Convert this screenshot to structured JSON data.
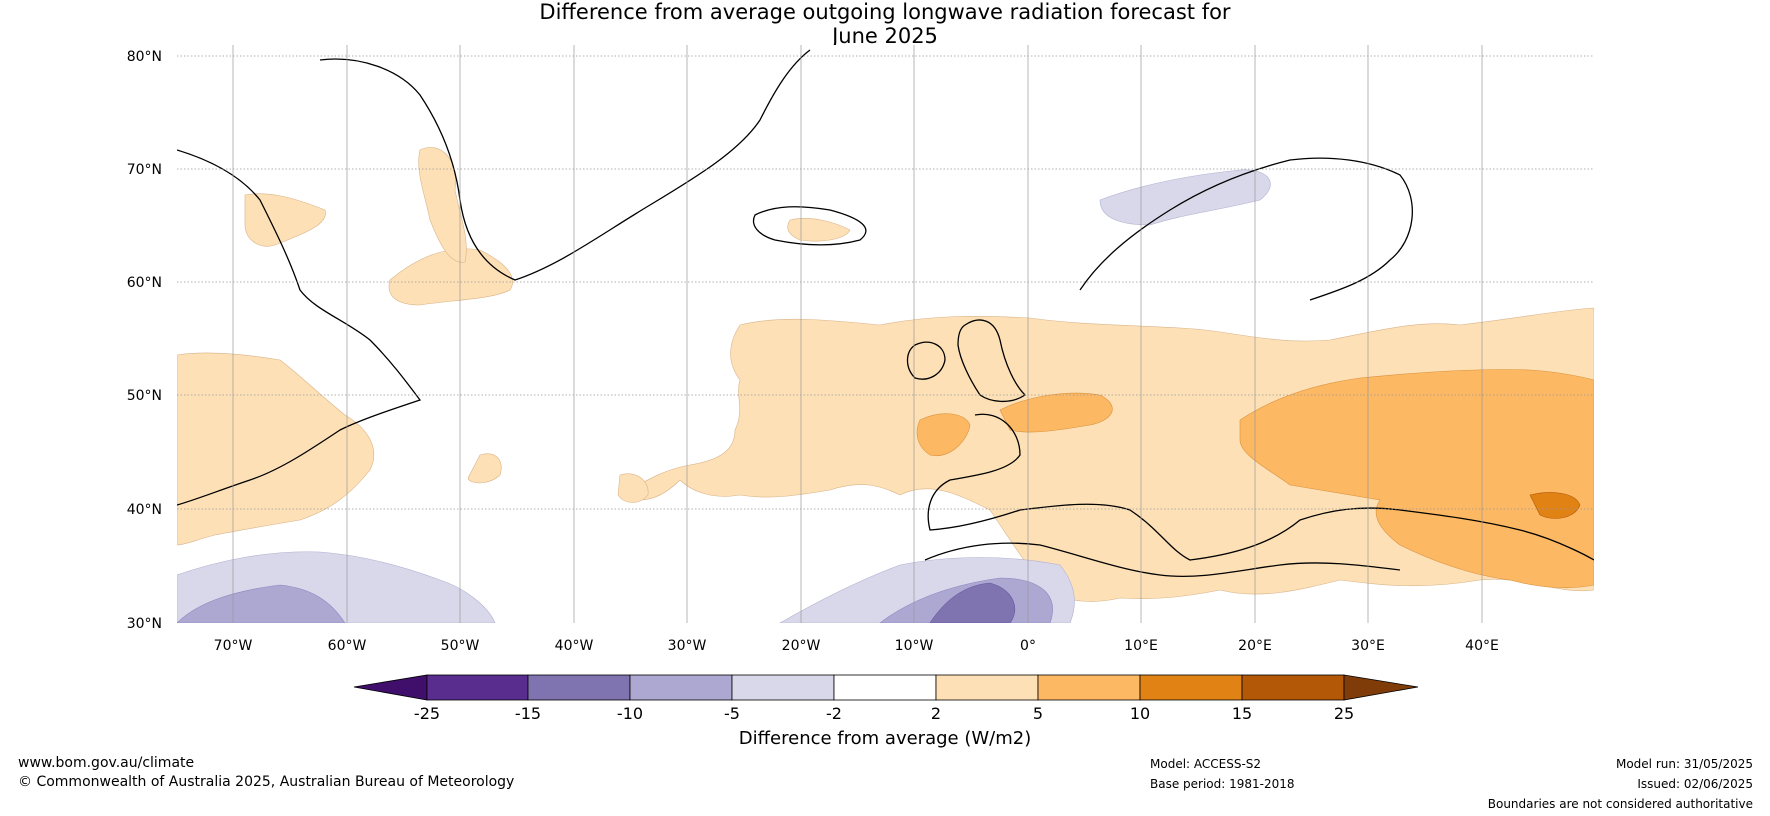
{
  "title": {
    "line1": "Difference from average outgoing longwave radiation forecast for",
    "line2": "June 2025"
  },
  "map": {
    "lat_labels": [
      "80°N",
      "70°N",
      "60°N",
      "50°N",
      "40°N",
      "30°N"
    ],
    "lon_labels": [
      "70°W",
      "60°W",
      "50°W",
      "40°W",
      "30°W",
      "20°W",
      "10°W",
      "0°",
      "10°E",
      "20°E",
      "30°E",
      "40°E"
    ]
  },
  "colorbar": {
    "title": "Difference from average (W/m2)",
    "ticks": [
      "-25",
      "-15",
      "-10",
      "-5",
      "-2",
      "2",
      "5",
      "10",
      "15",
      "25"
    ],
    "colors": [
      "#3f0f6b",
      "#582d8e",
      "#7f73b0",
      "#aca8d2",
      "#d8d8ea",
      "#ffffff",
      "#fde0b6",
      "#fdb863",
      "#e08214",
      "#b35806",
      "#7f3b08"
    ]
  },
  "footer": {
    "website": "www.bom.gov.au/climate",
    "copyright": "© Commonwealth of Australia 2025, Australian Bureau of Meteorology",
    "model": "Model: ACCESS-S2",
    "base_period": "Base period: 1981-2018",
    "model_run": "Model run: 31/05/2025",
    "issued": "Issued: 02/06/2025",
    "disclaimer": "Boundaries are not considered authoritative"
  }
}
